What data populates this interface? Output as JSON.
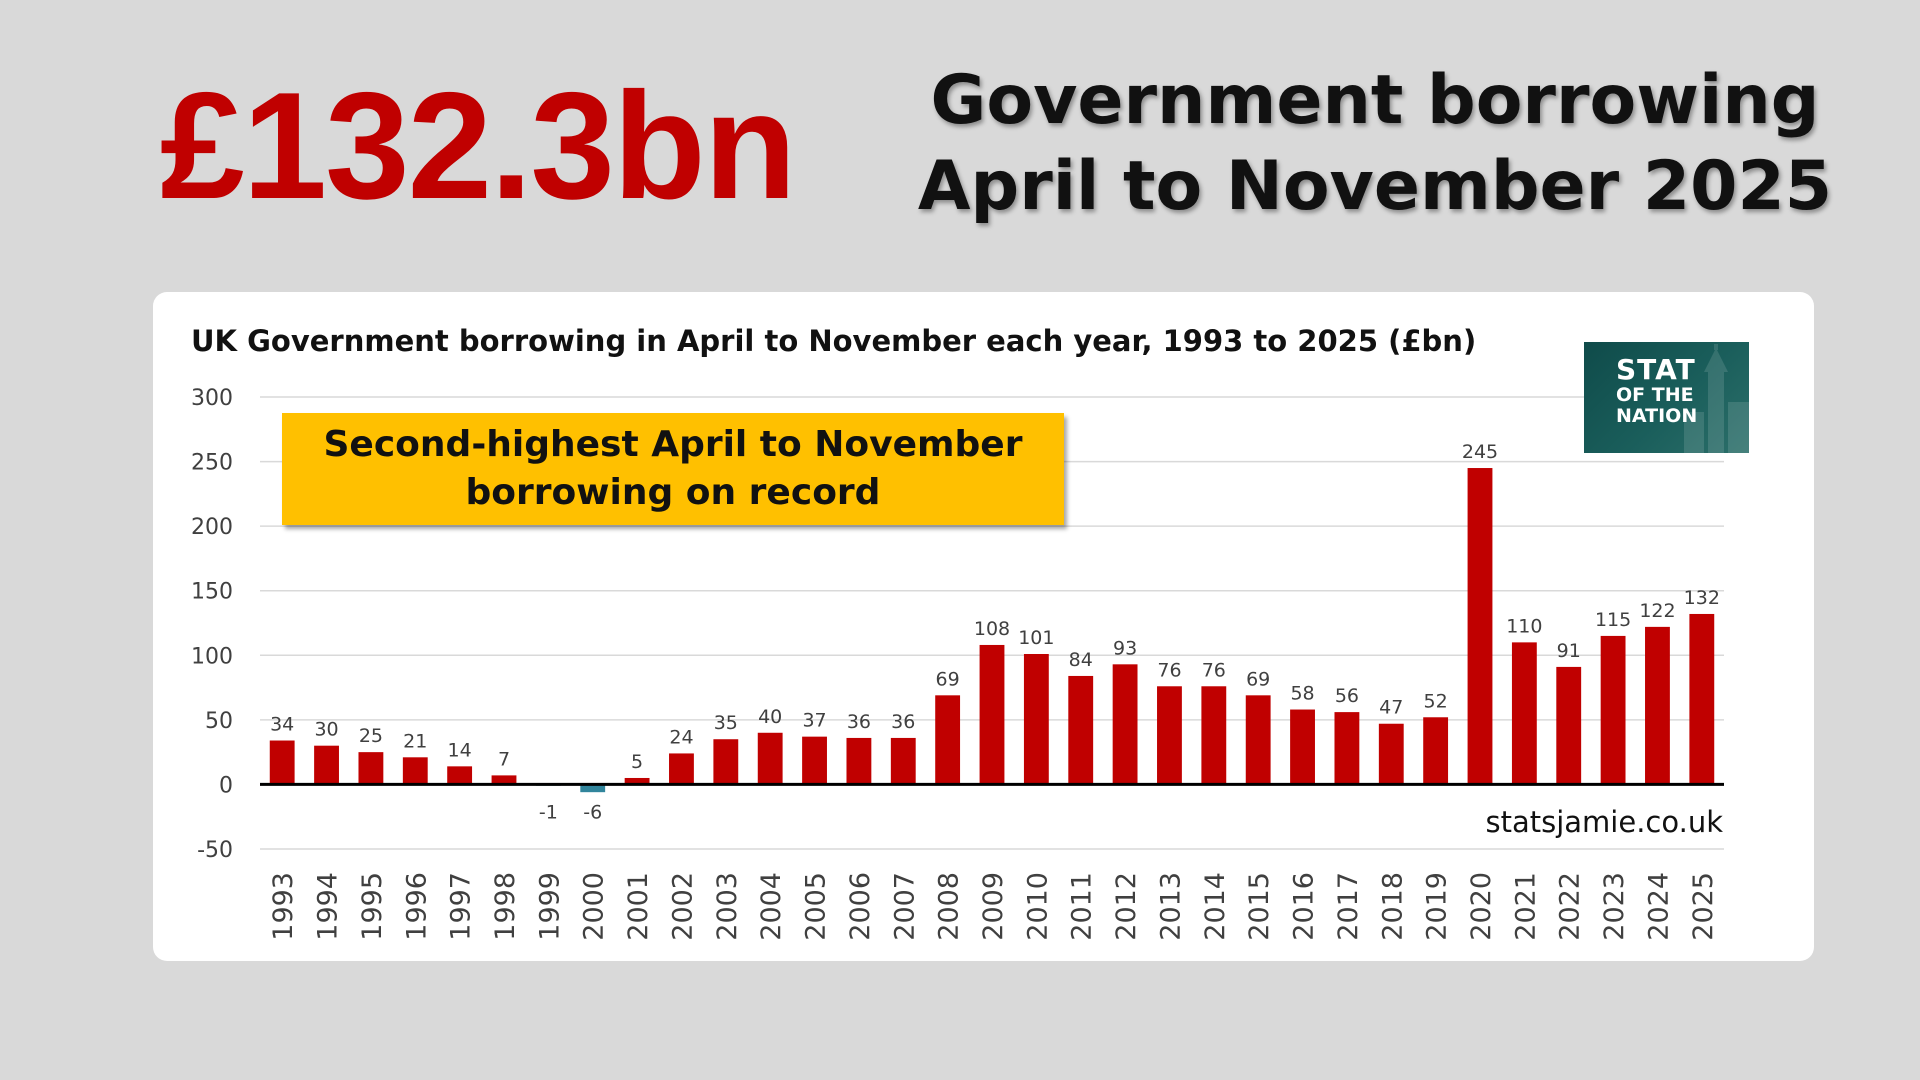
{
  "headline": {
    "figure": "£132.3bn",
    "title_line1": "Government borrowing",
    "title_line2": "April to November 2025"
  },
  "callout": {
    "line1": "Second-highest April to November",
    "line2": "borrowing on record"
  },
  "logo": {
    "line1": "STAT",
    "line2": "OF THE",
    "line3": "NATION"
  },
  "credit": "statsjamie.co.uk",
  "colors": {
    "background": "#d9d9d9",
    "headline_red": "#c00000",
    "bar_positive": "#c00000",
    "bar_negative": "#31859c",
    "callout_bg": "#ffc000",
    "logo_bg": "#1a5e5b"
  },
  "chart_data": {
    "type": "bar",
    "title": "UK Government borrowing in April to November each year, 1993 to 2025 (£bn)",
    "xlabel": "",
    "ylabel": "",
    "ylim": [
      -50,
      300
    ],
    "yticks": [
      300,
      250,
      200,
      150,
      100,
      50,
      0,
      -50
    ],
    "grid": true,
    "legend": "none",
    "categories": [
      "1993",
      "1994",
      "1995",
      "1996",
      "1997",
      "1998",
      "1999",
      "2000",
      "2001",
      "2002",
      "2003",
      "2004",
      "2005",
      "2006",
      "2007",
      "2008",
      "2009",
      "2010",
      "2011",
      "2012",
      "2013",
      "2014",
      "2015",
      "2016",
      "2017",
      "2018",
      "2019",
      "2020",
      "2021",
      "2022",
      "2023",
      "2024",
      "2025"
    ],
    "values": [
      34,
      30,
      25,
      21,
      14,
      7,
      -1,
      -6,
      5,
      24,
      35,
      40,
      37,
      36,
      36,
      69,
      108,
      101,
      84,
      93,
      76,
      76,
      69,
      58,
      56,
      47,
      52,
      245,
      110,
      91,
      115,
      122,
      132
    ]
  }
}
